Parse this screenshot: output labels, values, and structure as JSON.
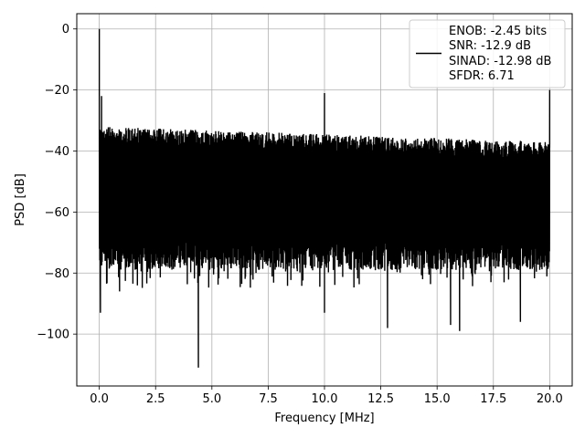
{
  "chart_data": {
    "type": "line",
    "title": "",
    "xlabel": "Frequency [MHz]",
    "ylabel": "PSD [dB]",
    "xlim": [
      -1.0,
      21.0
    ],
    "ylim": [
      -117.0,
      5.0
    ],
    "grid": true,
    "x_ticks": [
      0.0,
      2.5,
      5.0,
      7.5,
      10.0,
      12.5,
      15.0,
      17.5,
      20.0
    ],
    "x_tick_labels": [
      "0.0",
      "2.5",
      "5.0",
      "7.5",
      "10.0",
      "12.5",
      "15.0",
      "17.5",
      "20.0"
    ],
    "y_ticks": [
      0,
      -20,
      -40,
      -60,
      -80,
      -100
    ],
    "y_tick_labels": [
      "0",
      "−20",
      "−40",
      "−60",
      "−80",
      "−100"
    ],
    "legend_position": "top-right",
    "series": [
      {
        "name": "ENOB: -2.45 bits\nSNR: -12.9 dB\nSINAD: -12.98 dB\nSFDR: 6.71",
        "color": "#000000",
        "legend_lines": [
          "ENOB: -2.45 bits",
          "SNR: -12.9 dB",
          "SINAD: -12.98 dB",
          "SFDR: 6.71"
        ],
        "noise_envelope": {
          "x_start": 0.0,
          "x_end": 20.0,
          "top_start": -32.0,
          "top_end": -37.0,
          "floor_typical": -73.0,
          "floor_deep": -85.0
        },
        "peaks": [
          {
            "x": 0.0,
            "y": 0.0
          },
          {
            "x": 0.1,
            "y": -22.0
          },
          {
            "x": 10.0,
            "y": -21.0
          },
          {
            "x": 20.0,
            "y": -20.0
          }
        ],
        "dips": [
          {
            "x": 0.05,
            "y": -93.0
          },
          {
            "x": 0.9,
            "y": -86.0
          },
          {
            "x": 4.4,
            "y": -111.0
          },
          {
            "x": 10.0,
            "y": -93.0
          },
          {
            "x": 12.8,
            "y": -98.0
          },
          {
            "x": 15.6,
            "y": -97.0
          },
          {
            "x": 16.0,
            "y": -99.0
          },
          {
            "x": 18.7,
            "y": -96.0
          }
        ]
      }
    ]
  }
}
